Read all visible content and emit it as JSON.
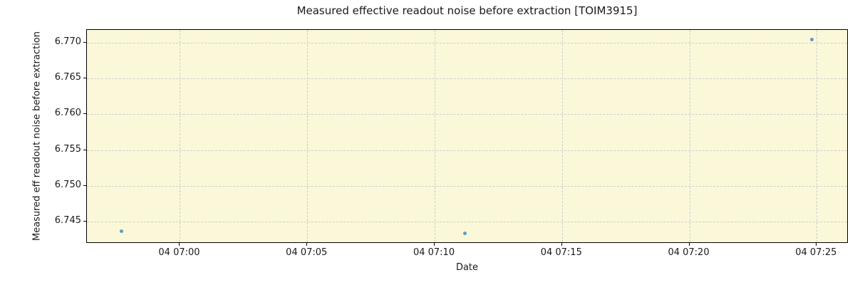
{
  "chart_data": {
    "type": "scatter",
    "title": "Measured effective readout noise before extraction [TOIM3915]",
    "xlabel": "Date",
    "ylabel": "Measured eff readout noise before extraction",
    "x_unit": "minutes after 07:00 on day 04",
    "xlim": [
      -3.65,
      26.25
    ],
    "ylim": [
      6.7419,
      6.7718
    ],
    "grid": true,
    "legend_position": "none",
    "x_ticks": [
      {
        "value": 0,
        "label": "04 07:00"
      },
      {
        "value": 5,
        "label": "04 07:05"
      },
      {
        "value": 10,
        "label": "04 07:10"
      },
      {
        "value": 15,
        "label": "04 07:15"
      },
      {
        "value": 20,
        "label": "04 07:20"
      },
      {
        "value": 25,
        "label": "04 07:25"
      }
    ],
    "y_ticks": [
      {
        "value": 6.745,
        "label": "6.745"
      },
      {
        "value": 6.75,
        "label": "6.750"
      },
      {
        "value": 6.755,
        "label": "6.755"
      },
      {
        "value": 6.76,
        "label": "6.760"
      },
      {
        "value": 6.765,
        "label": "6.765"
      },
      {
        "value": 6.77,
        "label": "6.770"
      }
    ],
    "series": [
      {
        "name": "measured-eff-readout-noise",
        "points": [
          {
            "x": -2.3,
            "x_time": "04 06:57.7",
            "y": 6.7436
          },
          {
            "x": 11.2,
            "x_time": "04 07:11.2",
            "y": 6.7433
          },
          {
            "x": 24.8,
            "x_time": "04 07:24.8",
            "y": 6.7705
          }
        ]
      }
    ],
    "colors": {
      "marker": "rgba(31,119,180,0.7)",
      "axes_background": "#fbf8d9",
      "gridline": "#cccccc",
      "spine": "#000000",
      "text": "#1a1a1a",
      "figure_background": "#ffffff"
    }
  }
}
